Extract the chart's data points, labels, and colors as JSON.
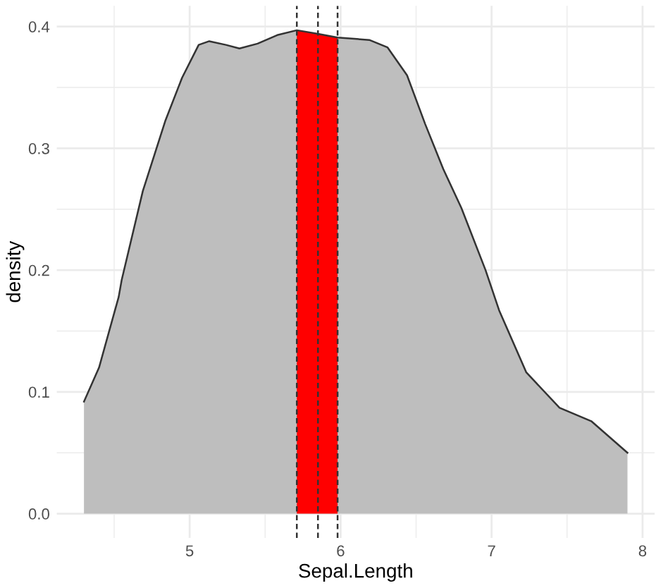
{
  "chart_data": {
    "type": "area",
    "xlabel": "Sepal.Length",
    "ylabel": "density",
    "xlim": [
      4.12,
      8.08
    ],
    "ylim": [
      -0.02,
      0.417
    ],
    "xticks": [
      {
        "value": 4.5,
        "label": null
      },
      5,
      {
        "value": 5.5,
        "label": null
      },
      6,
      {
        "value": 6.5,
        "label": null
      },
      7,
      {
        "value": 7.5,
        "label": null
      },
      8
    ],
    "yticks": [
      {
        "value": 0,
        "label": "0.0"
      },
      {
        "value": 0.05,
        "label": null
      },
      0.1,
      {
        "value": 0.15,
        "label": null
      },
      0.2,
      {
        "value": 0.25,
        "label": null
      },
      0.3,
      {
        "value": 0.35,
        "label": null
      },
      0.4
    ],
    "grid": true,
    "legend": false,
    "series": [
      {
        "color": "#bebebe",
        "x": [
          4.3,
          4.4,
          4.53,
          4.55,
          4.69,
          4.84,
          4.95,
          5.06,
          5.13,
          5.24,
          5.33,
          5.45,
          5.58,
          5.71,
          5.85,
          5.98,
          6.19,
          6.31,
          6.44,
          6.56,
          6.68,
          6.8,
          6.96,
          7.05,
          7.23,
          7.45,
          7.66,
          7.9
        ],
        "values": [
          0.092,
          0.12,
          0.178,
          0.192,
          0.265,
          0.323,
          0.358,
          0.385,
          0.388,
          0.385,
          0.382,
          0.386,
          0.393,
          0.397,
          0.394,
          0.391,
          0.389,
          0.383,
          0.36,
          0.32,
          0.283,
          0.251,
          0.2,
          0.167,
          0.116,
          0.087,
          0.076,
          0.05
        ]
      },
      {
        "color": "#ff0000",
        "x": [
          5.71,
          5.85,
          5.98
        ],
        "values": [
          0.397,
          0.394,
          0.391
        ]
      }
    ],
    "ref_lines": [
      {
        "axis": "x",
        "value": 5.71,
        "line_style": "dashed",
        "color": "#333333"
      },
      {
        "axis": "x",
        "value": 5.85,
        "line_style": "dashed",
        "color": "#333333"
      },
      {
        "axis": "x",
        "value": 5.98,
        "line_style": "dashed",
        "color": "#333333"
      }
    ]
  }
}
